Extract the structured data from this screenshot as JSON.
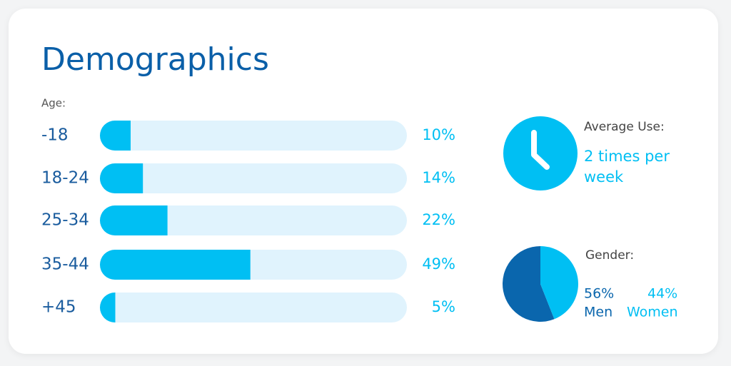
{
  "title": "Demographics",
  "chart_data": [
    {
      "type": "bar",
      "orientation": "horizontal",
      "title": "Age:",
      "categories": [
        "-18",
        "18-24",
        "25-34",
        "35-44",
        "+45"
      ],
      "values": [
        10,
        14,
        22,
        49,
        5
      ],
      "value_labels": [
        "10%",
        "14%",
        "22%",
        "49%",
        "5%"
      ],
      "color": "#00bff3",
      "track_color": "#e0f3fd",
      "xlim": [
        0,
        100
      ]
    },
    {
      "type": "pie",
      "title": "Gender:",
      "categories": [
        "Men",
        "Women"
      ],
      "values": [
        56,
        44
      ],
      "value_labels": [
        "56%",
        "44%"
      ],
      "colors": [
        "#0a66ad",
        "#00bff3"
      ]
    }
  ],
  "average_use": {
    "label": "Average Use:",
    "value": "2 times per week"
  }
}
